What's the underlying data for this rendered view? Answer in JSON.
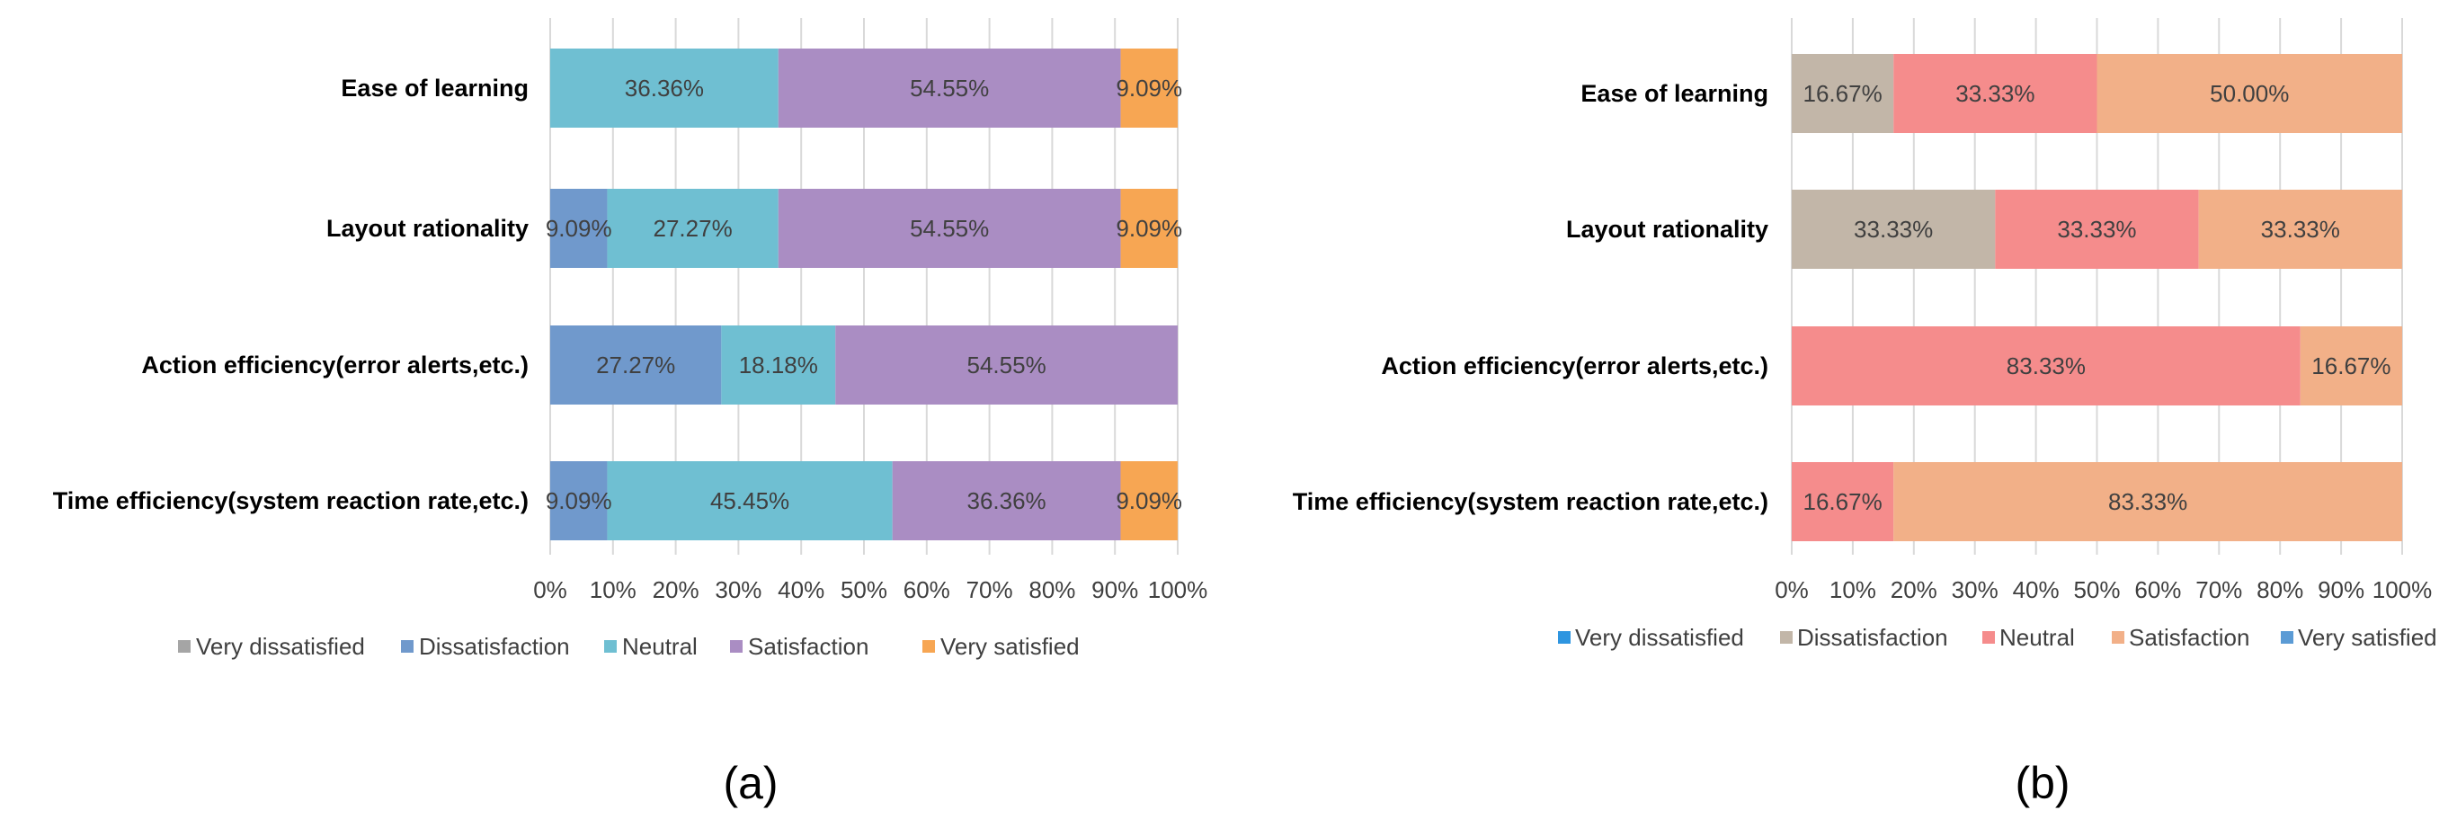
{
  "chart_data": [
    {
      "type": "bar",
      "orientation": "horizontal",
      "stacked": "percent",
      "panel_label": "(a)",
      "title": "",
      "xlabel": "",
      "ylabel": "",
      "xlim": [
        0,
        100
      ],
      "x_ticks": [
        "0%",
        "10%",
        "20%",
        "30%",
        "40%",
        "50%",
        "60%",
        "70%",
        "80%",
        "90%",
        "100%"
      ],
      "grid": true,
      "legend_position": "bottom",
      "categories": [
        "Ease of learning",
        "Layout rationality",
        "Action efficiency(error alerts,etc.)",
        "Time efficiency(system reaction rate,etc.)"
      ],
      "series": [
        {
          "name": "Very dissatisfied",
          "color": "#a5a5a5",
          "values": [
            0,
            0,
            0,
            0
          ],
          "labels": [
            "",
            "",
            "",
            ""
          ]
        },
        {
          "name": "Dissatisfaction",
          "color": "#7099cc",
          "values": [
            0,
            9.09,
            27.27,
            9.09
          ],
          "labels": [
            "",
            "9.09%",
            "27.27%",
            "9.09%"
          ]
        },
        {
          "name": "Neutral",
          "color": "#6fbfd2",
          "values": [
            36.36,
            27.27,
            18.18,
            45.45
          ],
          "labels": [
            "36.36%",
            "27.27%",
            "18.18%",
            "45.45%"
          ]
        },
        {
          "name": "Satisfaction",
          "color": "#aa8dc3",
          "values": [
            54.55,
            54.55,
            54.55,
            36.36
          ],
          "labels": [
            "54.55%",
            "54.55%",
            "54.55%",
            "36.36%"
          ]
        },
        {
          "name": "Very satisfied",
          "color": "#f7a653",
          "values": [
            9.09,
            9.09,
            0,
            9.09
          ],
          "labels": [
            "9.09%",
            "9.09%",
            "",
            "9.09%"
          ]
        }
      ]
    },
    {
      "type": "bar",
      "orientation": "horizontal",
      "stacked": "percent",
      "panel_label": "(b)",
      "title": "",
      "xlabel": "",
      "ylabel": "",
      "xlim": [
        0,
        100
      ],
      "x_ticks": [
        "0%",
        "10%",
        "20%",
        "30%",
        "40%",
        "50%",
        "60%",
        "70%",
        "80%",
        "90%",
        "100%"
      ],
      "grid": true,
      "legend_position": "bottom",
      "categories": [
        "Ease of learning",
        "Layout rationality",
        "Action efficiency(error alerts,etc.)",
        "Time efficiency(system reaction rate,etc.)"
      ],
      "series": [
        {
          "name": "Very dissatisfied",
          "color": "#2e95e0",
          "values": [
            0,
            0,
            0,
            0
          ],
          "labels": [
            "",
            "",
            "",
            ""
          ]
        },
        {
          "name": "Dissatisfaction",
          "color": "#c2b6a8",
          "values": [
            16.67,
            33.33,
            0,
            0
          ],
          "labels": [
            "16.67%",
            "33.33%",
            "",
            ""
          ]
        },
        {
          "name": "Neutral",
          "color": "#f58c8c",
          "values": [
            33.33,
            33.33,
            83.33,
            16.67
          ],
          "labels": [
            "33.33%",
            "33.33%",
            "83.33%",
            "16.67%"
          ]
        },
        {
          "name": "Satisfaction",
          "color": "#f2b088",
          "values": [
            50.0,
            33.33,
            16.67,
            83.33
          ],
          "labels": [
            "50.00%",
            "33.33%",
            "16.67%",
            "83.33%"
          ]
        },
        {
          "name": "Very satisfied",
          "color": "#5b9bd5",
          "values": [
            0,
            0,
            0,
            0
          ],
          "labels": [
            "",
            "",
            "",
            ""
          ]
        }
      ]
    }
  ]
}
